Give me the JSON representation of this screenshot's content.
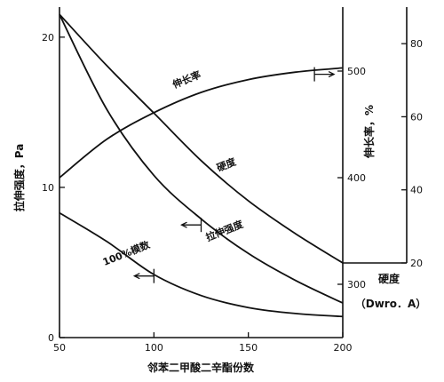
{
  "chart_data": {
    "type": "line",
    "xlabel": "邻苯二甲酸二辛酯份数",
    "x_ticks": [
      "50",
      "100",
      "150",
      "200"
    ],
    "xlim": [
      50,
      200
    ],
    "axes": {
      "tensile": {
        "label": "拉伸强度，Pa",
        "range": [
          0,
          22
        ],
        "ticks": [
          "0",
          "10",
          "20"
        ],
        "tick_values": [
          0,
          10,
          20
        ]
      },
      "elongation": {
        "label": "伸长率，%",
        "range": [
          250,
          560
        ],
        "ticks": [
          "300",
          "400",
          "500"
        ],
        "tick_values": [
          300,
          400,
          500
        ]
      },
      "hardness": {
        "label_top": "硬度",
        "label_bottom": "（Dwro．A）",
        "range": [
          20,
          90
        ],
        "ticks": [
          "20",
          "40",
          "60",
          "80"
        ],
        "tick_values": [
          20,
          40,
          60,
          80
        ]
      }
    },
    "series": [
      {
        "name": "伸长率",
        "axis": "elongation",
        "x": [
          50,
          75,
          100,
          125,
          150,
          175,
          200
        ],
        "values": [
          400,
          436,
          461,
          480,
          492,
          499,
          503
        ],
        "label_x": 118,
        "label_value": 489,
        "marker": {
          "x": 185,
          "value": 497,
          "dir": "right"
        }
      },
      {
        "name": "硬度",
        "axis": "hardness",
        "x": [
          50,
          75,
          100,
          125,
          150,
          175,
          200
        ],
        "values": [
          88,
          74,
          61,
          48,
          37,
          28,
          20
        ],
        "label_x": 139,
        "label_value": 46,
        "marker": null
      },
      {
        "name": "拉伸强度",
        "axis": "tensile",
        "x": [
          50,
          75,
          100,
          125,
          150,
          175,
          200
        ],
        "values": [
          21.5,
          15.2,
          10.8,
          7.9,
          5.6,
          3.8,
          2.3
        ],
        "label_x": 138,
        "label_value": 6.9,
        "marker": {
          "x": 125,
          "value": 7.5,
          "dir": "left"
        }
      },
      {
        "name": "100%模数",
        "axis": "tensile",
        "x": [
          50,
          75,
          100,
          125,
          150,
          175,
          200
        ],
        "values": [
          8.3,
          6.4,
          4.2,
          2.8,
          2.0,
          1.6,
          1.4
        ],
        "label_x": 86,
        "label_value": 5.4,
        "marker": {
          "x": 100,
          "value": 4.1,
          "dir": "left"
        }
      }
    ]
  }
}
